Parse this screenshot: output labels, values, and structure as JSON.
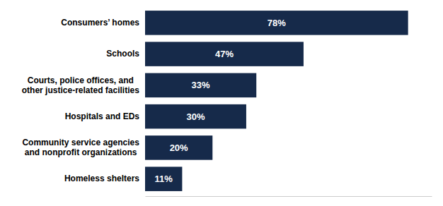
{
  "chart_data": {
    "type": "bar",
    "orientation": "horizontal",
    "categories": [
      "Homeless shelters",
      "Community service agencies\nand nonprofit organizations",
      "Hospitals and EDs",
      "Courts, police offices, and\nother justice-related facilities",
      "Schools",
      "Consumers’ homes"
    ],
    "values": [
      11,
      20,
      30,
      33,
      47,
      78
    ],
    "value_labels": [
      "11%",
      "20%",
      "30%",
      "33%",
      "47%",
      "78%"
    ],
    "color": "#162a4a",
    "xlim": [
      0,
      85
    ],
    "data_labels": true,
    "tick_labels": "y",
    "grid": false
  }
}
